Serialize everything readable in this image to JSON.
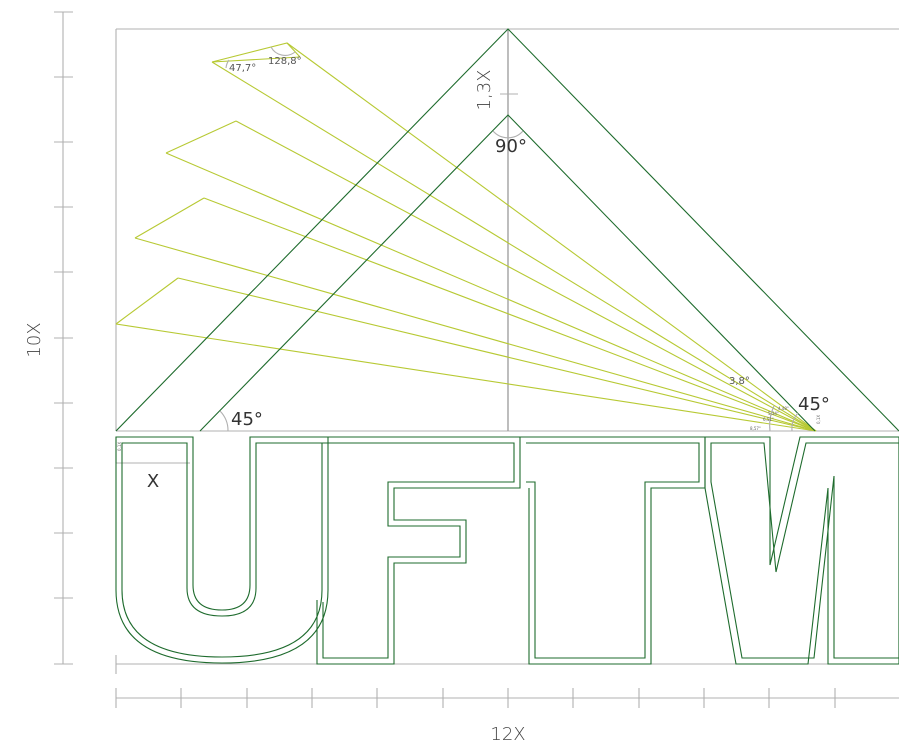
{
  "labels": {
    "height_total": "10X",
    "width_total": "12X",
    "roof_gap": "1,3X",
    "apex_angle": "90°",
    "left_base_angle": "45°",
    "right_base_angle": "45°",
    "unit_x": "X",
    "ray_angle_small": "3,8°",
    "parallelogram_angle_a": "47,7°",
    "parallelogram_angle_b": "128,8°",
    "small_side_mark": "0,1X",
    "ray_micro_labels": [
      "8,57°",
      "6,51°",
      "5,34°",
      "4,48°"
    ],
    "corner_mark": "0,1X"
  },
  "wordmark": {
    "text": "UFTM"
  },
  "colors": {
    "outline_dark": "#1e6b2d",
    "ray_lime": "#b7c933",
    "guide_gray": "#b0b0b0",
    "text": "#444444"
  }
}
